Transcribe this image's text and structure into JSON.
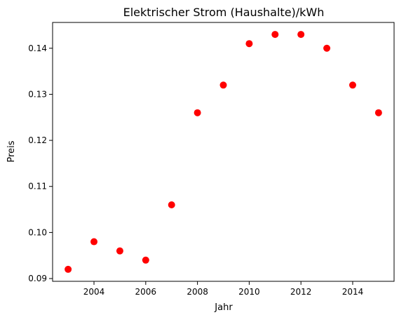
{
  "chart_data": {
    "type": "scatter",
    "title": "Elektrischer Strom (Haushalte)/kWh",
    "xlabel": "Jahr",
    "ylabel": "Preis",
    "x": [
      2003,
      2004,
      2005,
      2006,
      2007,
      2008,
      2009,
      2010,
      2011,
      2012,
      2013,
      2014,
      2015
    ],
    "y": [
      0.092,
      0.098,
      0.096,
      0.094,
      0.106,
      0.126,
      0.132,
      0.141,
      0.143,
      0.143,
      0.14,
      0.132,
      0.126
    ],
    "xlim": [
      2002.4,
      2015.6
    ],
    "ylim": [
      0.0894,
      0.1456
    ],
    "xticks": [
      2004,
      2006,
      2008,
      2010,
      2012,
      2014
    ],
    "yticks": [
      0.09,
      0.1,
      0.11,
      0.12,
      0.13,
      0.14
    ],
    "xtick_labels": [
      "2004",
      "2006",
      "2008",
      "2010",
      "2012",
      "2014"
    ],
    "ytick_labels": [
      "0.09",
      "0.10",
      "0.11",
      "0.12",
      "0.13",
      "0.14"
    ],
    "marker_color": "#ff0000",
    "grid": false,
    "legend": false
  }
}
